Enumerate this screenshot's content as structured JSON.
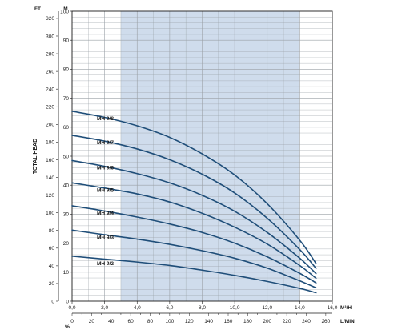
{
  "chart_data": {
    "type": "line",
    "title": "",
    "ylabel": "TOTAL HEAD",
    "colors": {
      "curve": "#1f4e79",
      "band": "#cfdcec",
      "grid": "#9aa0a6",
      "axis": "#1a1a1a"
    },
    "grid": true,
    "axes": {
      "y_ft": {
        "unit": "FT",
        "range": [
          0,
          320
        ],
        "ticks": [
          "0",
          "20",
          "40",
          "60",
          "80",
          "100",
          "120",
          "140",
          "160",
          "180",
          "200",
          "220",
          "240",
          "260",
          "280",
          "300",
          "320"
        ]
      },
      "y_m": {
        "unit": "M",
        "range": [
          0,
          100
        ],
        "ticks": [
          "0",
          "10",
          "20",
          "30",
          "40",
          "50",
          "60",
          "70",
          "80",
          "90",
          "100"
        ]
      },
      "x_m3h": {
        "unit": "M³/H",
        "range": [
          0,
          16
        ],
        "ticks": [
          "0,0",
          "2,0",
          "4,0",
          "6,0",
          "8,0",
          "10,0",
          "12,0",
          "14,0",
          "16,0"
        ]
      },
      "x_lmin": {
        "unit": "L/MIN",
        "range": [
          0,
          260
        ],
        "ticks": [
          "0",
          "20",
          "40",
          "60",
          "80",
          "100",
          "120",
          "140",
          "160",
          "180",
          "200",
          "220",
          "240",
          "260"
        ]
      },
      "x_pct": {
        "unit": "%"
      }
    },
    "recommended_range_m3h": [
      3.0,
      14.0
    ],
    "series": [
      {
        "name": "MH 9/2",
        "x": [
          0,
          2,
          4,
          6,
          8,
          10,
          12,
          14,
          15
        ],
        "y": [
          15.5,
          14.5,
          13.5,
          12.3,
          10.7,
          8.9,
          6.8,
          4.4,
          2.9
        ]
      },
      {
        "name": "MH 9/3",
        "x": [
          0,
          2,
          4,
          6,
          8,
          10,
          12,
          14,
          15
        ],
        "y": [
          24.5,
          22.9,
          21.4,
          19.6,
          17.4,
          14.8,
          11.4,
          7.0,
          4.6
        ]
      },
      {
        "name": "MH 9/4",
        "x": [
          0,
          2,
          4,
          6,
          8,
          10,
          12,
          14,
          15
        ],
        "y": [
          32.9,
          31.1,
          29.0,
          26.6,
          23.7,
          20.0,
          15.3,
          9.6,
          6.3
        ]
      },
      {
        "name": "MH 9/5",
        "x": [
          0,
          2,
          4,
          6,
          8,
          10,
          12,
          14,
          15
        ],
        "y": [
          40.8,
          39.0,
          37.0,
          34.2,
          30.3,
          25.5,
          19.7,
          12.3,
          7.9
        ]
      },
      {
        "name": "MH 9/6",
        "x": [
          0,
          2,
          4,
          6,
          8,
          10,
          12,
          14,
          15
        ],
        "y": [
          48.5,
          46.5,
          44.0,
          40.8,
          36.5,
          31.0,
          23.7,
          14.8,
          9.5
        ]
      },
      {
        "name": "MH 9/7",
        "x": [
          0,
          2,
          4,
          6,
          8,
          10,
          12,
          14,
          15
        ],
        "y": [
          57.2,
          55.2,
          52.5,
          48.8,
          43.8,
          37.3,
          28.6,
          17.8,
          11.3
        ]
      },
      {
        "name": "MH 9/8",
        "x": [
          0,
          2,
          4,
          6,
          8,
          10,
          12,
          14,
          15
        ],
        "y": [
          65.5,
          63.4,
          60.5,
          56.5,
          50.8,
          43.5,
          33.6,
          21.0,
          13.0
        ]
      }
    ]
  }
}
